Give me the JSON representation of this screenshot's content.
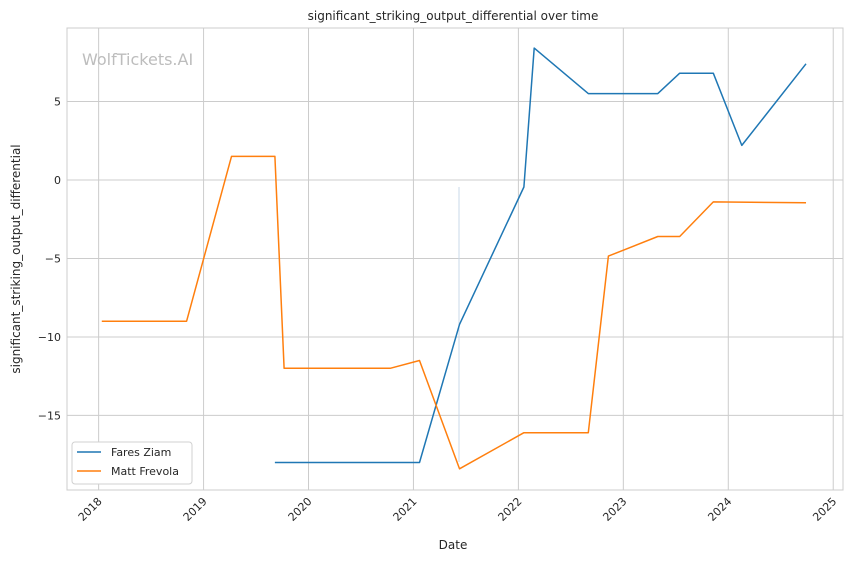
{
  "chart_data": {
    "type": "line",
    "title": "significant_striking_output_differential over time",
    "xlabel": "Date",
    "ylabel": "significant_striking_output_differential",
    "watermark": "WolfTickets.AI",
    "xlim": [
      "2017-09-13",
      "2025-02-04"
    ],
    "ylim": [
      -19.75,
      9.68
    ],
    "x_ticks": [
      "2018",
      "2019",
      "2020",
      "2021",
      "2022",
      "2023",
      "2024",
      "2025"
    ],
    "y_ticks": [
      5,
      0,
      -5,
      -10,
      -15
    ],
    "y_tick_labels": [
      "5",
      "0",
      "−5",
      "−10",
      "−15"
    ],
    "grid": true,
    "legend_position": "lower-left",
    "series": [
      {
        "name": "Fares Ziam",
        "color": "#1f77b4",
        "x": [
          "2019-09-06",
          "2021-01-22",
          "2021-06-10",
          "2022-01-20",
          "2022-02-25",
          "2022-09-01",
          "2023-05-01",
          "2023-07-16",
          "2023-11-10",
          "2024-02-17",
          "2024-09-28"
        ],
        "y": [
          -18.0,
          -18.0,
          -9.2,
          -0.45,
          8.4,
          5.5,
          5.5,
          6.8,
          6.8,
          2.2,
          7.4
        ]
      },
      {
        "name": "Matt Frevola",
        "color": "#ff7f0e",
        "x": [
          "2018-01-12",
          "2018-11-03",
          "2019-04-08",
          "2019-09-06",
          "2019-10-08",
          "2020-10-12",
          "2021-01-22",
          "2021-06-10",
          "2022-01-20",
          "2022-09-01",
          "2022-11-10",
          "2023-05-01",
          "2023-07-16",
          "2023-11-10",
          "2024-09-28"
        ],
        "y": [
          -9.0,
          -9.0,
          1.5,
          1.5,
          -12.0,
          -12.0,
          -11.5,
          -18.4,
          -16.1,
          -16.1,
          -4.85,
          -3.6,
          -3.6,
          -1.4,
          -1.45
        ]
      }
    ]
  }
}
